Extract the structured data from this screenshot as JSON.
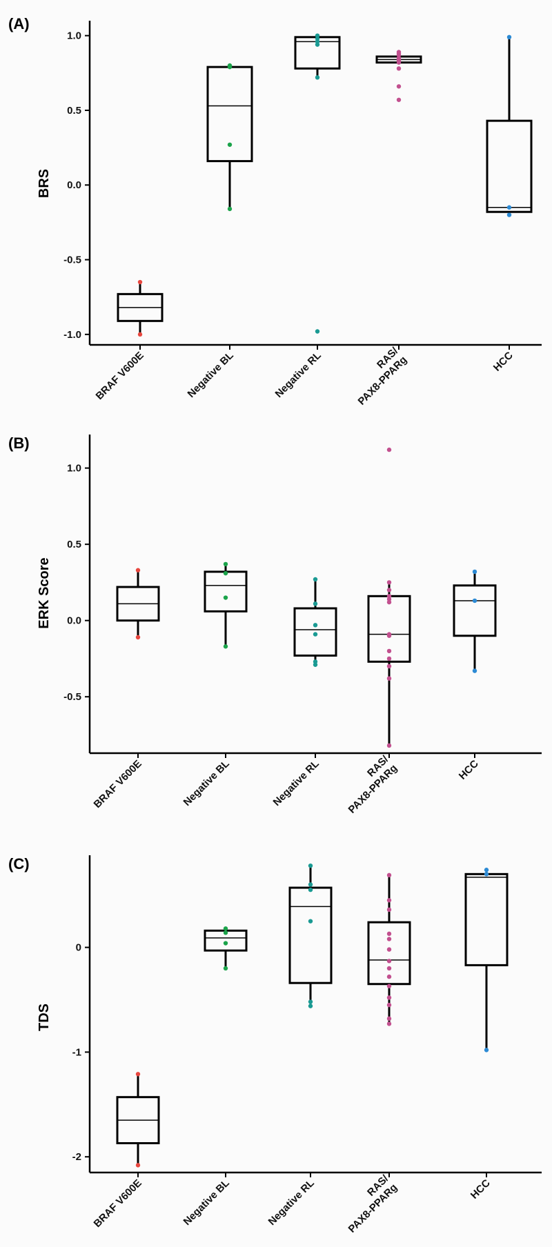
{
  "chart_data": [
    {
      "type": "box",
      "panel_label": "(A)",
      "ylabel": "BRS",
      "categories": [
        "BRAF V600E",
        "Negative BL",
        "Negative RL",
        "RAS/ PAX8-PPARg",
        "HCC"
      ],
      "category_lines": [
        [
          "BRAF V600E"
        ],
        [
          "Negative BL"
        ],
        [
          "Negative RL"
        ],
        [
          "RAS/",
          "PAX8-PPARg"
        ],
        [
          "HCC"
        ]
      ],
      "yticks": [
        1.0,
        0.5,
        0.0,
        -0.5,
        -1.0
      ],
      "ytick_labels": [
        "1.0",
        "0.5",
        "0.0",
        "-0.5",
        "-1.0"
      ],
      "ylim": [
        -1.07,
        1.1
      ],
      "boxes": [
        {
          "whisker_low": -1.0,
          "q1": -0.91,
          "median": -0.82,
          "q3": -0.73,
          "whisker_high": -0.65
        },
        {
          "whisker_low": -0.16,
          "q1": 0.16,
          "median": 0.53,
          "q3": 0.79,
          "whisker_high": 0.79
        },
        {
          "whisker_low": 0.72,
          "q1": 0.78,
          "median": 0.96,
          "q3": 0.99,
          "whisker_high": 1.0
        },
        {
          "whisker_low": 0.82,
          "q1": 0.82,
          "median": 0.84,
          "q3": 0.86,
          "whisker_high": 0.86
        },
        {
          "whisker_low": -0.2,
          "q1": -0.18,
          "median": -0.15,
          "q3": 0.43,
          "whisker_high": 0.99
        }
      ],
      "points": [
        [
          -0.65,
          -1.0
        ],
        [
          0.8,
          0.79,
          0.27,
          -0.16
        ],
        [
          1.0,
          0.98,
          0.96,
          0.94,
          0.72,
          -0.98
        ],
        [
          0.89,
          0.88,
          0.87,
          0.85,
          0.84,
          0.83,
          0.82,
          0.78,
          0.66,
          0.57
        ],
        [
          0.99,
          -0.15,
          -0.2
        ]
      ],
      "point_colors": [
        "#e8473f",
        "#1ba34a",
        "#1a9a93",
        "#c2508f",
        "#2c8ad4"
      ]
    },
    {
      "type": "box",
      "panel_label": "(B)",
      "ylabel": "ERK Score",
      "categories": [
        "BRAF V600E",
        "Negative BL",
        "Negative RL",
        "RAS/ PAX8-PPARg",
        "HCC"
      ],
      "category_lines": [
        [
          "BRAF V600E"
        ],
        [
          "Negative BL"
        ],
        [
          "Negative RL"
        ],
        [
          "RAS/",
          "PAX8-PPARg"
        ],
        [
          "HCC"
        ]
      ],
      "yticks": [
        1.0,
        0.5,
        0.0,
        -0.5
      ],
      "ytick_labels": [
        "1.0",
        "0.5",
        "0.0",
        "-0.5"
      ],
      "ylim": [
        -0.87,
        1.22
      ],
      "boxes": [
        {
          "whisker_low": -0.11,
          "q1": 0.0,
          "median": 0.11,
          "q3": 0.22,
          "whisker_high": 0.33
        },
        {
          "whisker_low": -0.17,
          "q1": 0.06,
          "median": 0.23,
          "q3": 0.32,
          "whisker_high": 0.37
        },
        {
          "whisker_low": -0.29,
          "q1": -0.23,
          "median": -0.06,
          "q3": 0.08,
          "whisker_high": 0.27
        },
        {
          "whisker_low": -0.82,
          "q1": -0.27,
          "median": -0.09,
          "q3": 0.16,
          "whisker_high": 0.25
        },
        {
          "whisker_low": -0.33,
          "q1": -0.1,
          "median": 0.13,
          "q3": 0.23,
          "whisker_high": 0.32
        }
      ],
      "points": [
        [
          0.33,
          -0.11
        ],
        [
          0.37,
          0.31,
          0.15,
          -0.17
        ],
        [
          0.27,
          0.11,
          -0.03,
          -0.09,
          -0.27,
          -0.29
        ],
        [
          1.12,
          0.25,
          0.2,
          0.16,
          0.14,
          0.12,
          -0.09,
          -0.1,
          -0.2,
          -0.25,
          -0.3,
          -0.38,
          -0.82
        ],
        [
          0.32,
          0.13,
          -0.33
        ]
      ],
      "point_colors": [
        "#e8473f",
        "#1ba34a",
        "#1a9a93",
        "#c2508f",
        "#2c8ad4"
      ]
    },
    {
      "type": "box",
      "panel_label": "(C)",
      "ylabel": "TDS",
      "categories": [
        "BRAF V600E",
        "Negative BL",
        "Negative RL",
        "RAS/ PAX8-PPARg",
        "HCC"
      ],
      "category_lines": [
        [
          "BRAF V600E"
        ],
        [
          "Negative BL"
        ],
        [
          "Negative RL"
        ],
        [
          "RAS/",
          "PAX8-PPARg"
        ],
        [
          "HCC"
        ]
      ],
      "yticks": [
        0,
        -1,
        -2
      ],
      "ytick_labels": [
        "0",
        "-1",
        "-2"
      ],
      "ylim": [
        -2.15,
        0.88
      ],
      "boxes": [
        {
          "whisker_low": -2.08,
          "q1": -1.87,
          "median": -1.65,
          "q3": -1.43,
          "whisker_high": -1.21
        },
        {
          "whisker_low": -0.2,
          "q1": -0.03,
          "median": 0.09,
          "q3": 0.16,
          "whisker_high": 0.19
        },
        {
          "whisker_low": -0.56,
          "q1": -0.34,
          "median": 0.39,
          "q3": 0.57,
          "whisker_high": 0.78
        },
        {
          "whisker_low": -0.73,
          "q1": -0.35,
          "median": -0.12,
          "q3": 0.24,
          "whisker_high": 0.69
        },
        {
          "whisker_low": -0.98,
          "q1": -0.17,
          "median": 0.67,
          "q3": 0.7,
          "whisker_high": 0.74
        }
      ],
      "points": [
        [
          -1.21,
          -2.08
        ],
        [
          0.18,
          0.14,
          0.04,
          -0.2
        ],
        [
          0.78,
          0.6,
          0.55,
          0.25,
          -0.52,
          -0.56
        ],
        [
          0.69,
          0.45,
          0.36,
          0.13,
          0.08,
          -0.02,
          -0.13,
          -0.2,
          -0.28,
          -0.37,
          -0.48,
          -0.55,
          -0.68,
          -0.73
        ],
        [
          0.74,
          0.7,
          -0.98
        ]
      ],
      "point_colors": [
        "#e8473f",
        "#1ba34a",
        "#1a9a93",
        "#c2508f",
        "#2c8ad4"
      ]
    }
  ]
}
